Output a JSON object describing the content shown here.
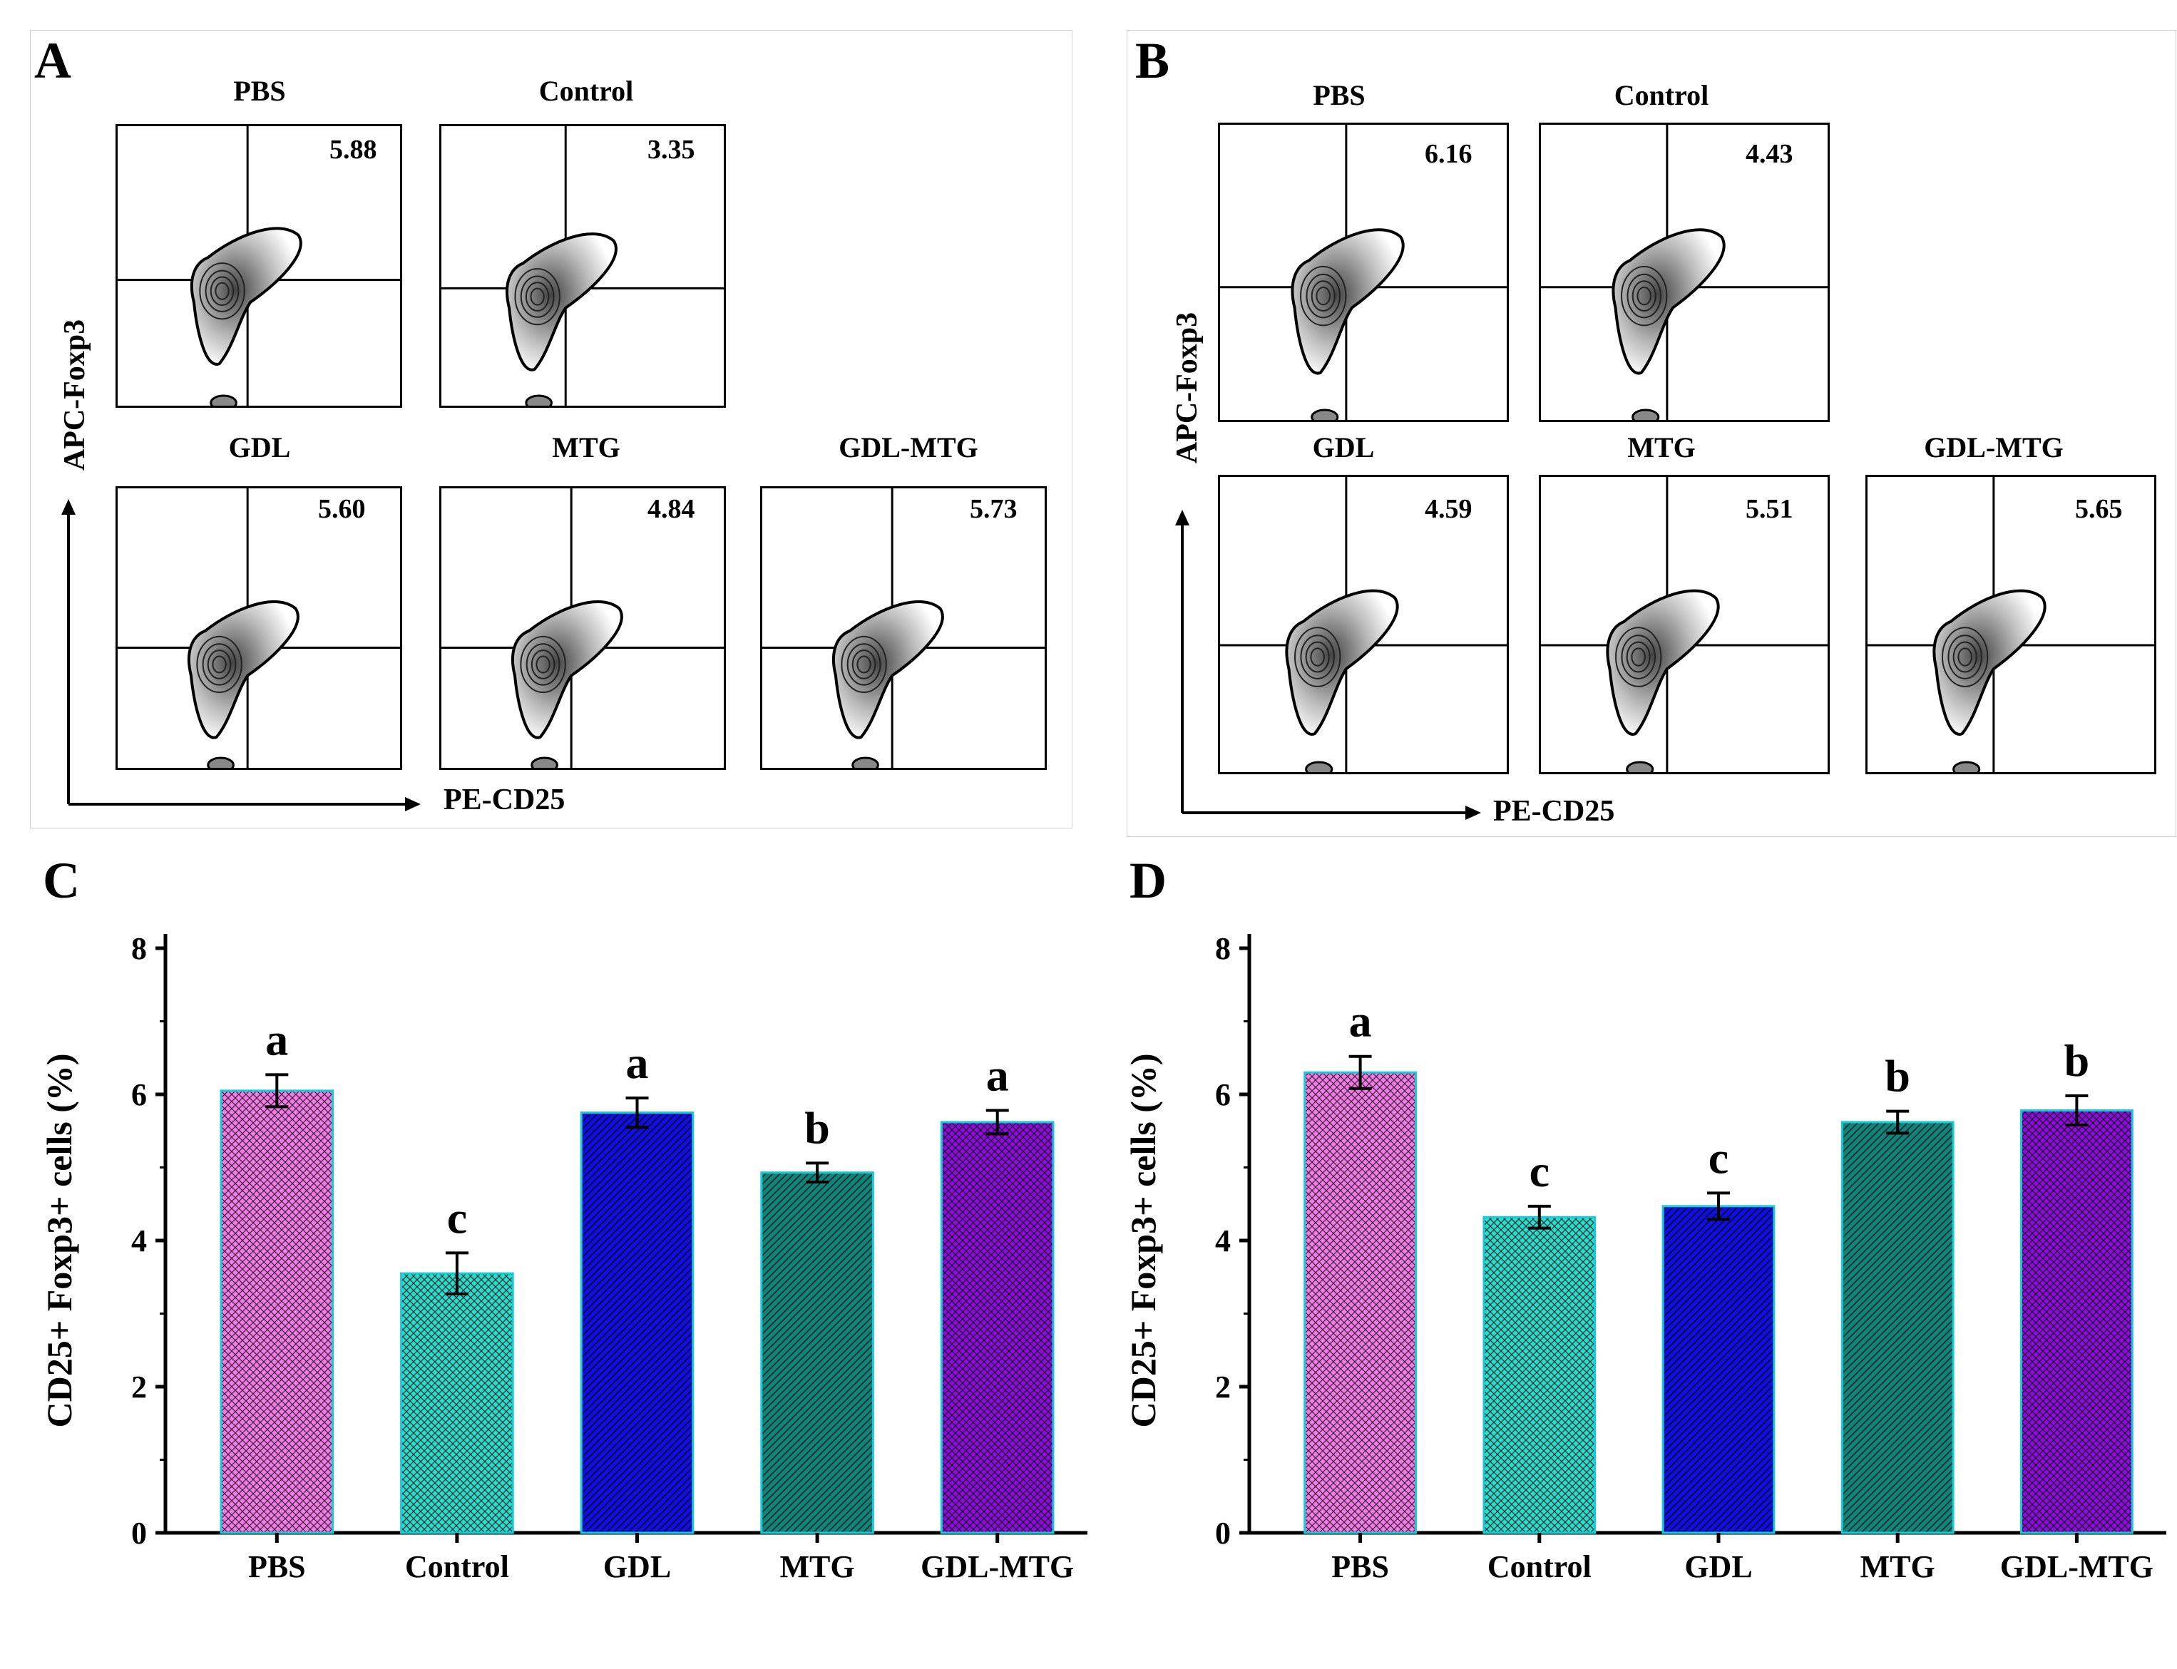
{
  "panels": {
    "A": {
      "label": "A",
      "x_axis_label": "PE-CD25",
      "y_axis_label": "APC-Foxp3",
      "plots": [
        {
          "title": "PBS",
          "value": "5.88"
        },
        {
          "title": "Control",
          "value": "3.35"
        },
        {
          "title": "GDL",
          "value": "5.60"
        },
        {
          "title": "MTG",
          "value": "4.84"
        },
        {
          "title": "GDL-MTG",
          "value": "5.73"
        }
      ]
    },
    "B": {
      "label": "B",
      "x_axis_label": "PE-CD25",
      "y_axis_label": "APC-Foxp3",
      "plots": [
        {
          "title": "PBS",
          "value": "6.16"
        },
        {
          "title": "Control",
          "value": "4.43"
        },
        {
          "title": "GDL",
          "value": "4.59"
        },
        {
          "title": "MTG",
          "value": "5.51"
        },
        {
          "title": "GDL-MTG",
          "value": "5.65"
        }
      ]
    }
  },
  "chart_data": [
    {
      "panel": "C",
      "type": "bar",
      "categories": [
        "PBS",
        "Control",
        "GDL",
        "MTG",
        "GDL-MTG"
      ],
      "values": [
        6.05,
        3.55,
        5.75,
        4.93,
        5.62
      ],
      "errors": [
        0.22,
        0.28,
        0.2,
        0.13,
        0.16
      ],
      "letters": [
        "a",
        "c",
        "a",
        "b",
        "a"
      ],
      "colors": [
        "#f27ce6",
        "#2fd9cc",
        "#1010d8",
        "#13827a",
        "#8a10d8"
      ],
      "ylabel": "CD25+ Foxp3+ cells (%)",
      "xlabel": "",
      "ylim": [
        0,
        8
      ],
      "yticks": [
        0,
        2,
        4,
        6,
        8
      ]
    },
    {
      "panel": "D",
      "type": "bar",
      "categories": [
        "PBS",
        "Control",
        "GDL",
        "MTG",
        "GDL-MTG"
      ],
      "values": [
        6.3,
        4.32,
        4.47,
        5.62,
        5.78
      ],
      "errors": [
        0.22,
        0.15,
        0.18,
        0.15,
        0.2
      ],
      "letters": [
        "a",
        "c",
        "c",
        "b",
        "b"
      ],
      "colors": [
        "#f27ce6",
        "#2fd9cc",
        "#1010d8",
        "#13827a",
        "#8a10d8"
      ],
      "ylabel": "CD25+ Foxp3+ cells (%)",
      "xlabel": "",
      "ylim": [
        0,
        8
      ],
      "yticks": [
        0,
        2,
        4,
        6,
        8
      ]
    }
  ]
}
